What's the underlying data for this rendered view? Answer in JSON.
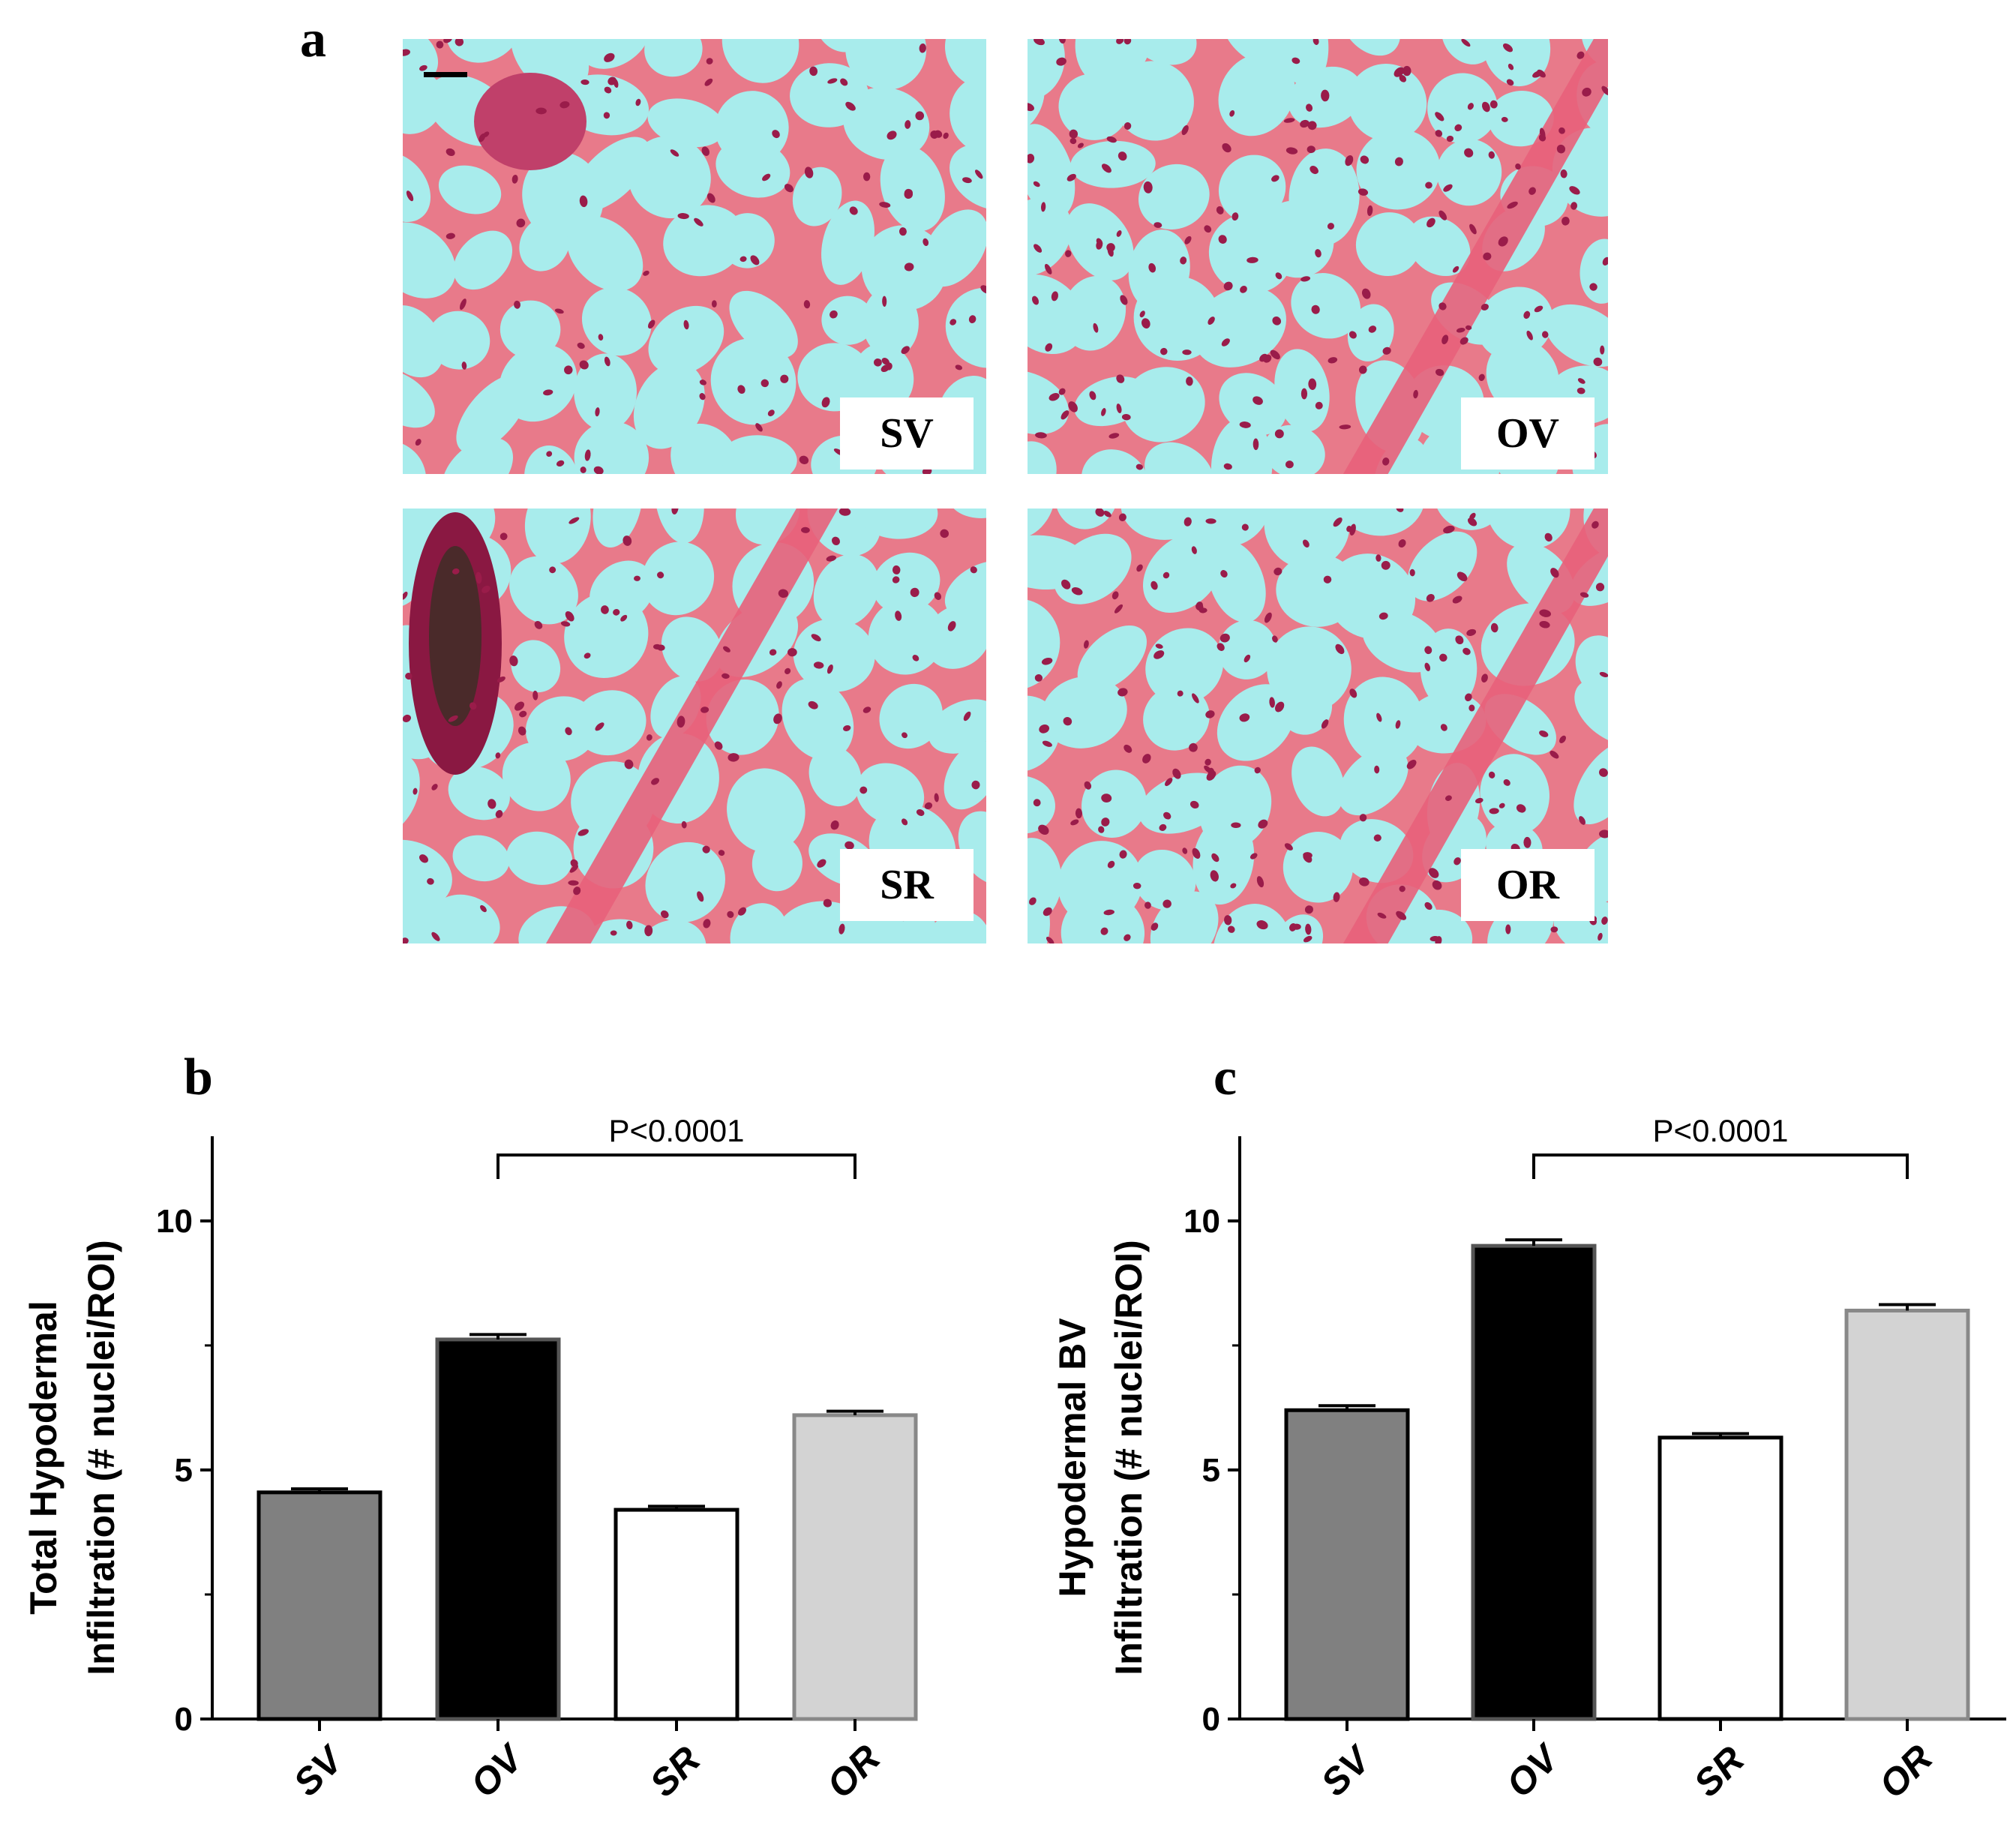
{
  "panel_a": {
    "letter": "a",
    "images": [
      {
        "label": "SV"
      },
      {
        "label": "OV"
      },
      {
        "label": "SR"
      },
      {
        "label": "OR"
      }
    ],
    "colors": {
      "background": "#a8ecec",
      "stroma": "#e87a8a",
      "nuclei": "#9a1c4a",
      "muscle": "#e8607a"
    }
  },
  "chart_data": [
    {
      "panel": "b",
      "type": "bar",
      "categories": [
        "SV",
        "OV",
        "SR",
        "OR"
      ],
      "values": [
        4.55,
        7.62,
        4.2,
        6.1
      ],
      "errors": [
        0.07,
        0.1,
        0.07,
        0.08
      ],
      "colors": [
        "#808080",
        "#000000",
        "#ffffff",
        "#d3d3d3"
      ],
      "ylabel_lines": [
        "Total Hypodermal",
        "Infiltration (# nuclei/ROI)"
      ],
      "yticks": [
        "0",
        "5",
        "10"
      ],
      "ylim": [
        0,
        11.7
      ],
      "comparison": {
        "from": "OV",
        "to": "OR",
        "label": "P<0.0001"
      },
      "grid": false
    },
    {
      "panel": "c",
      "type": "bar",
      "categories": [
        "SV",
        "OV",
        "SR",
        "OR"
      ],
      "values": [
        6.2,
        9.5,
        5.65,
        8.2
      ],
      "errors": [
        0.09,
        0.12,
        0.08,
        0.12
      ],
      "colors": [
        "#808080",
        "#000000",
        "#ffffff",
        "#d3d3d3"
      ],
      "ylabel_lines": [
        "Hypodermal BV",
        "Infiltration (# nuclei/ROI)"
      ],
      "yticks": [
        "0",
        "5",
        "10"
      ],
      "ylim": [
        0,
        11.7
      ],
      "comparison": {
        "from": "OV",
        "to": "OR",
        "label": "P<0.0001"
      },
      "grid": false
    }
  ]
}
